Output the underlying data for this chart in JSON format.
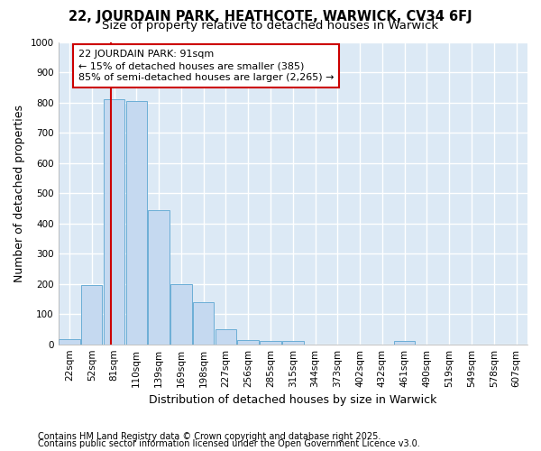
{
  "title1": "22, JOURDAIN PARK, HEATHCOTE, WARWICK, CV34 6FJ",
  "title2": "Size of property relative to detached houses in Warwick",
  "xlabel": "Distribution of detached houses by size in Warwick",
  "ylabel": "Number of detached properties",
  "bin_labels": [
    "22sqm",
    "52sqm",
    "81sqm",
    "110sqm",
    "139sqm",
    "169sqm",
    "198sqm",
    "227sqm",
    "256sqm",
    "285sqm",
    "315sqm",
    "344sqm",
    "373sqm",
    "402sqm",
    "432sqm",
    "461sqm",
    "490sqm",
    "519sqm",
    "549sqm",
    "578sqm",
    "607sqm"
  ],
  "bar_values": [
    18,
    197,
    810,
    805,
    445,
    198,
    140,
    50,
    15,
    12,
    12,
    0,
    0,
    0,
    0,
    10,
    0,
    0,
    0,
    0,
    0
  ],
  "bar_color": "#c5d9f0",
  "bar_edge_color": "#6baed6",
  "vline_color": "#cc0000",
  "annotation_text": "22 JOURDAIN PARK: 91sqm\n← 15% of detached houses are smaller (385)\n85% of semi-detached houses are larger (2,265) →",
  "annotation_box_facecolor": "#ffffff",
  "annotation_box_edgecolor": "#cc0000",
  "ylim": [
    0,
    1000
  ],
  "yticks": [
    0,
    100,
    200,
    300,
    400,
    500,
    600,
    700,
    800,
    900,
    1000
  ],
  "bg_color": "#ffffff",
  "plot_bg_color": "#dce9f5",
  "grid_color": "#ffffff",
  "footer1": "Contains HM Land Registry data © Crown copyright and database right 2025.",
  "footer2": "Contains public sector information licensed under the Open Government Licence v3.0.",
  "title_fontsize": 10.5,
  "subtitle_fontsize": 9.5,
  "axis_label_fontsize": 9,
  "tick_fontsize": 7.5,
  "annotation_fontsize": 8,
  "footer_fontsize": 7
}
